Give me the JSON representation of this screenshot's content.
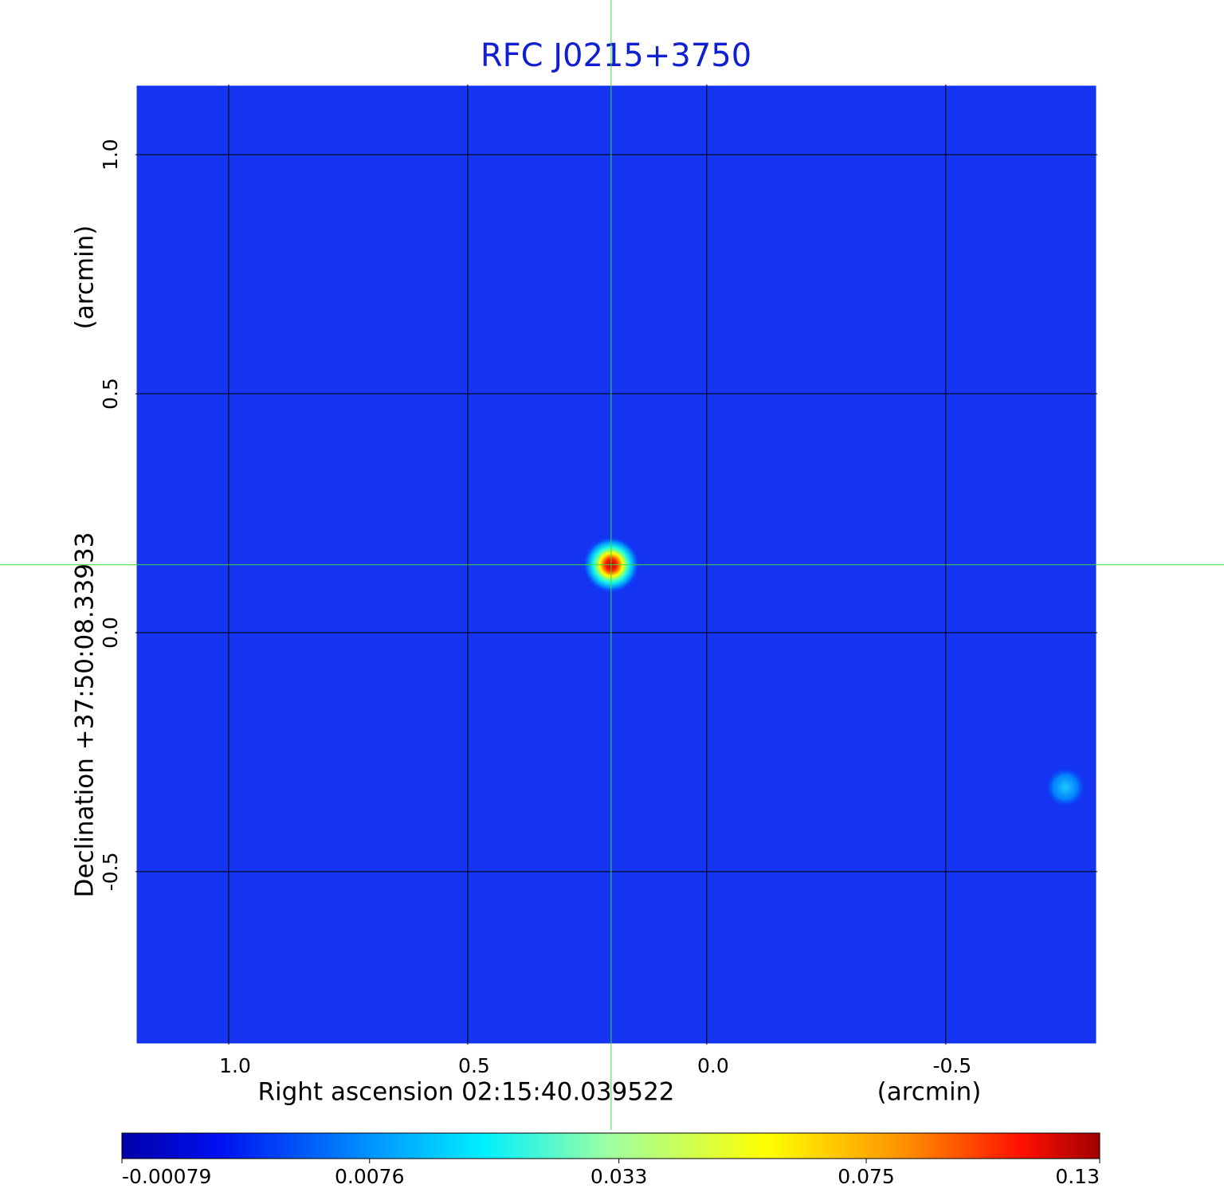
{
  "chart_data": {
    "type": "image",
    "title": "RFC J0215+3750",
    "xlabel": "Right ascension  02:15:40.039522",
    "xunit": "(arcmin)",
    "ylabel": "Declination  +37:50:08.33933",
    "yunit": "(arcmin)",
    "xlim": [
      1.195,
      -0.817
    ],
    "ylim": [
      -0.862,
      1.147
    ],
    "xticks": [
      {
        "value": 1.0,
        "label": "1.0"
      },
      0.5,
      {
        "value": 0.0,
        "label": "0.0"
      },
      -0.5
    ],
    "yticks": [
      {
        "value": 1.0,
        "label": "1.0"
      },
      0.5,
      {
        "value": 0.0,
        "label": "0.0"
      },
      -0.5
    ],
    "grid": true,
    "crosshair": {
      "x": 0.2,
      "y": 0.142
    },
    "colorbar": {
      "scale": "sqrt",
      "lim": [
        -0.00079,
        0.13
      ],
      "ticks": [
        -0.00079,
        0.0076,
        0.033,
        0.075,
        0.13
      ]
    }
  }
}
